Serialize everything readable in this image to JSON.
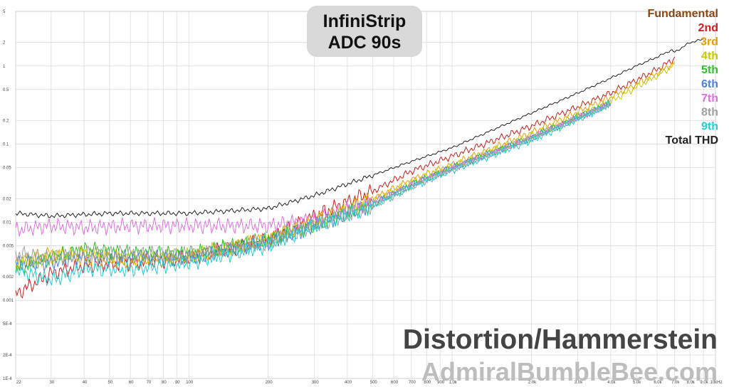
{
  "title": {
    "line1": "InfiniStrip",
    "line2": "ADC 90s"
  },
  "caption": {
    "main": "Distortion/Hammerstein",
    "site": "AdmiralBumbleBee.com"
  },
  "chart_data": {
    "type": "line",
    "x_scale": "log",
    "y_scale": "log",
    "xlim": [
      22,
      10000
    ],
    "ylim": [
      0.0001,
      5
    ],
    "grid": true,
    "legend_position": "top-right",
    "x_ticks": [
      {
        "v": 22,
        "label": "22"
      },
      {
        "v": 30,
        "label": "30"
      },
      {
        "v": 40,
        "label": "40"
      },
      {
        "v": 50,
        "label": "50"
      },
      {
        "v": 60,
        "label": "60"
      },
      {
        "v": 70,
        "label": "70"
      },
      {
        "v": 80,
        "label": "80"
      },
      {
        "v": 90,
        "label": "90"
      },
      {
        "v": 100,
        "label": "100"
      },
      {
        "v": 200,
        "label": "200"
      },
      {
        "v": 300,
        "label": "300"
      },
      {
        "v": 400,
        "label": "400"
      },
      {
        "v": 500,
        "label": "500"
      },
      {
        "v": 600,
        "label": "600"
      },
      {
        "v": 700,
        "label": "700"
      },
      {
        "v": 800,
        "label": "800"
      },
      {
        "v": 900,
        "label": "900"
      },
      {
        "v": 1000,
        "label": "1.0k"
      },
      {
        "v": 2000,
        "label": "2.0k"
      },
      {
        "v": 3000,
        "label": "3.0k"
      },
      {
        "v": 4000,
        "label": "4.0k"
      },
      {
        "v": 5000,
        "label": "5.0k"
      },
      {
        "v": 6000,
        "label": "6.0k"
      },
      {
        "v": 7000,
        "label": "7.0k"
      },
      {
        "v": 8000,
        "label": "8.0k"
      },
      {
        "v": 9000,
        "label": "9.0k"
      },
      {
        "v": 10000,
        "label": "10kHz"
      }
    ],
    "y_ticks": [
      {
        "v": 5,
        "label": "5"
      },
      {
        "v": 2,
        "label": "2"
      },
      {
        "v": 1,
        "label": "1"
      },
      {
        "v": 0.5,
        "label": "0.5"
      },
      {
        "v": 0.2,
        "label": "0.2"
      },
      {
        "v": 0.1,
        "label": "0.1"
      },
      {
        "v": 0.05,
        "label": "0.05"
      },
      {
        "v": 0.02,
        "label": "0.02"
      },
      {
        "v": 0.01,
        "label": "0.01"
      },
      {
        "v": 0.005,
        "label": "0.005"
      },
      {
        "v": 0.002,
        "label": "0.002"
      },
      {
        "v": 0.001,
        "label": "0.001"
      },
      {
        "v": 0.0005,
        "label": "5E-4"
      },
      {
        "v": 0.0002,
        "label": "2E-4"
      },
      {
        "v": 0.0001,
        "label": "1E-4"
      }
    ],
    "series": [
      {
        "name": "Fundamental",
        "color": "#8b4513",
        "x": [],
        "y": []
      },
      {
        "name": "2nd",
        "color": "#cc2020",
        "x": [
          22,
          30,
          40,
          60,
          100,
          200,
          300,
          500,
          700,
          1000,
          2000,
          4000,
          6000,
          7000
        ],
        "y": [
          0.0012,
          0.0022,
          0.0028,
          0.003,
          0.0035,
          0.006,
          0.012,
          0.025,
          0.045,
          0.07,
          0.17,
          0.45,
          0.9,
          1.25
        ]
      },
      {
        "name": "3rd",
        "color": "#e8a000",
        "x": [
          22,
          30,
          40,
          60,
          100,
          200,
          300,
          500,
          700,
          1000,
          2000,
          4000,
          6000,
          7000
        ],
        "y": [
          0.003,
          0.004,
          0.0035,
          0.0032,
          0.0035,
          0.006,
          0.01,
          0.02,
          0.035,
          0.055,
          0.14,
          0.4,
          0.8,
          1.1
        ]
      },
      {
        "name": "4th",
        "color": "#c8c800",
        "x": [
          22,
          30,
          40,
          60,
          100,
          200,
          300,
          500,
          700,
          1000,
          2000,
          4000,
          6000,
          7000
        ],
        "y": [
          0.003,
          0.0035,
          0.004,
          0.0035,
          0.0038,
          0.006,
          0.01,
          0.019,
          0.033,
          0.052,
          0.13,
          0.35,
          0.75,
          1.05
        ]
      },
      {
        "name": "5th",
        "color": "#30c030",
        "x": [
          22,
          30,
          40,
          60,
          100,
          200,
          300,
          500,
          700,
          1000,
          2000,
          4000
        ],
        "y": [
          0.0025,
          0.0035,
          0.0045,
          0.004,
          0.004,
          0.006,
          0.009,
          0.017,
          0.03,
          0.05,
          0.12,
          0.34
        ]
      },
      {
        "name": "6th",
        "color": "#5080e0",
        "x": [
          22,
          30,
          40,
          60,
          100,
          200,
          300,
          500,
          700,
          1000,
          2000,
          4000
        ],
        "y": [
          0.003,
          0.003,
          0.0035,
          0.0035,
          0.0035,
          0.0055,
          0.009,
          0.017,
          0.03,
          0.05,
          0.12,
          0.33
        ]
      },
      {
        "name": "7th",
        "color": "#e070e0",
        "x": [
          22,
          30,
          40,
          60,
          100,
          200,
          300,
          500,
          700,
          1000,
          2000,
          4000
        ],
        "y": [
          0.008,
          0.009,
          0.0085,
          0.009,
          0.009,
          0.009,
          0.011,
          0.018,
          0.03,
          0.048,
          0.12,
          0.33
        ]
      },
      {
        "name": "8th",
        "color": "#a0a0a0",
        "x": [
          22,
          30,
          40,
          60,
          100,
          200,
          300,
          500,
          700,
          1000,
          2000,
          4000
        ],
        "y": [
          0.004,
          0.0035,
          0.004,
          0.004,
          0.0038,
          0.0055,
          0.009,
          0.016,
          0.028,
          0.048,
          0.12,
          0.33
        ]
      },
      {
        "name": "9th",
        "color": "#20d0d0",
        "x": [
          22,
          30,
          40,
          60,
          100,
          200,
          300,
          500,
          700,
          1000,
          2000,
          4000
        ],
        "y": [
          0.0025,
          0.0018,
          0.0025,
          0.0025,
          0.003,
          0.005,
          0.009,
          0.016,
          0.028,
          0.046,
          0.11,
          0.32
        ]
      },
      {
        "name": "Total THD",
        "color": "#222222",
        "x": [
          22,
          30,
          50,
          100,
          200,
          300,
          500,
          700,
          1000,
          2000,
          3000,
          4000,
          5000,
          6000,
          6800,
          7000,
          8000,
          9000
        ],
        "y": [
          0.013,
          0.012,
          0.013,
          0.013,
          0.015,
          0.022,
          0.04,
          0.06,
          0.09,
          0.25,
          0.45,
          0.7,
          1.0,
          1.3,
          1.6,
          1.5,
          2.0,
          2.2
        ]
      }
    ]
  }
}
